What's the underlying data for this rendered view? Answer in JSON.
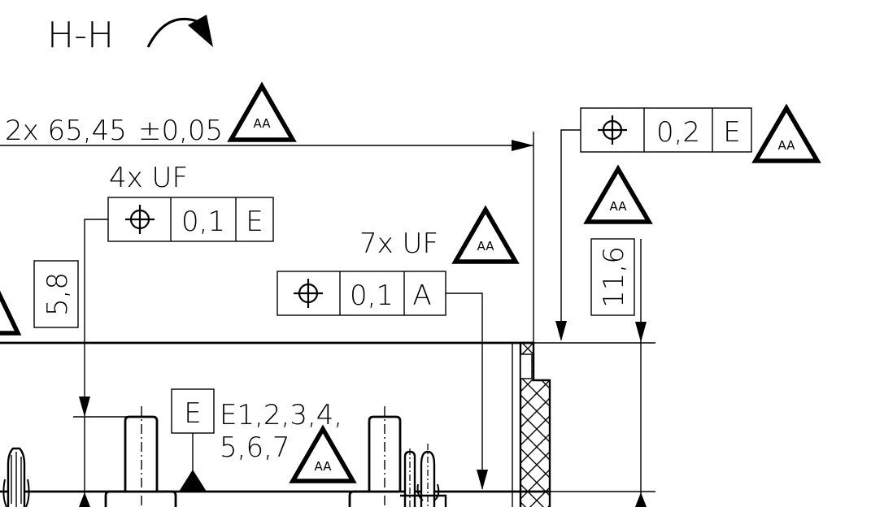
{
  "view": {
    "section_label": "H-H"
  },
  "dimensions": {
    "overall": {
      "text": "2x 65,45",
      "tolerance": "±0,05"
    },
    "height_left": "5,8",
    "height_right": "11,6"
  },
  "notes": {
    "count_4x": "4x UF",
    "count_7x": "7x UF",
    "datum_list_line1": "E1,2,3,4,",
    "datum_list_line2": "5,6,7"
  },
  "feature_frames": {
    "frame_top_right": {
      "symbol": "⌖",
      "value": "0,2",
      "datum": "E"
    },
    "frame_4x": {
      "symbol": "⌖",
      "value": "0,1",
      "datum": "E"
    },
    "frame_7x": {
      "symbol": "⌖",
      "value": "0,1",
      "datum": "A"
    }
  },
  "datum_feature": {
    "letter": "E"
  },
  "badges": {
    "aa": "AA"
  }
}
